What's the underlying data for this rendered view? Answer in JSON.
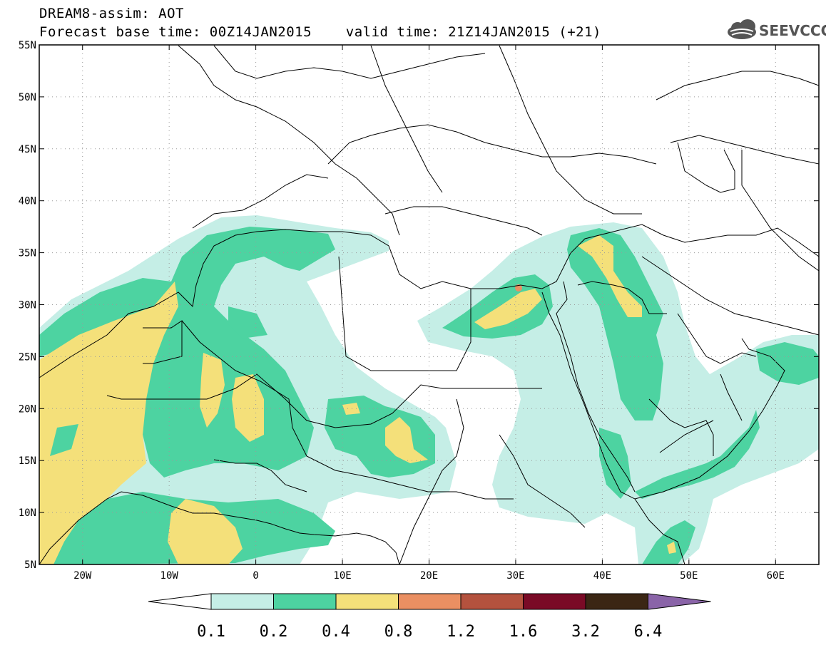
{
  "header": {
    "line1": "DREAM8-assim: AOT",
    "line2": "Forecast base time: 00Z14JAN2015    valid time: 21Z14JAN2015 (+21)",
    "logo_text": "SEEVCCC"
  },
  "map": {
    "lon_range": [
      -25,
      65
    ],
    "lat_range": [
      5,
      55
    ],
    "lat_ticks": [
      {
        "lat": 55,
        "label": "55N"
      },
      {
        "lat": 50,
        "label": "50N"
      },
      {
        "lat": 45,
        "label": "45N"
      },
      {
        "lat": 40,
        "label": "40N"
      },
      {
        "lat": 35,
        "label": "35N"
      },
      {
        "lat": 30,
        "label": "30N"
      },
      {
        "lat": 25,
        "label": "25N"
      },
      {
        "lat": 20,
        "label": "20N"
      },
      {
        "lat": 15,
        "label": "15N"
      },
      {
        "lat": 10,
        "label": "10N"
      },
      {
        "lat": 5,
        "label": "5N"
      }
    ],
    "lon_ticks": [
      {
        "lon": -20,
        "label": "20W"
      },
      {
        "lon": -10,
        "label": "10W"
      },
      {
        "lon": 0,
        "label": "0"
      },
      {
        "lon": 10,
        "label": "10E"
      },
      {
        "lon": 20,
        "label": "20E"
      },
      {
        "lon": 30,
        "label": "30E"
      },
      {
        "lon": 40,
        "label": "40E"
      },
      {
        "lon": 50,
        "label": "50E"
      },
      {
        "lon": 60,
        "label": "60E"
      }
    ],
    "grid": "dotted"
  },
  "colorbar": {
    "colors": [
      "#ffffff",
      "#c5eee6",
      "#4dd3a1",
      "#f4e07a",
      "#ea8f62",
      "#b4523e",
      "#7a0a26",
      "#3b2614",
      "#8a64a8"
    ],
    "labels": [
      "0.1",
      "0.2",
      "0.4",
      "0.8",
      "1.2",
      "1.6",
      "3.2",
      "6.4"
    ]
  }
}
